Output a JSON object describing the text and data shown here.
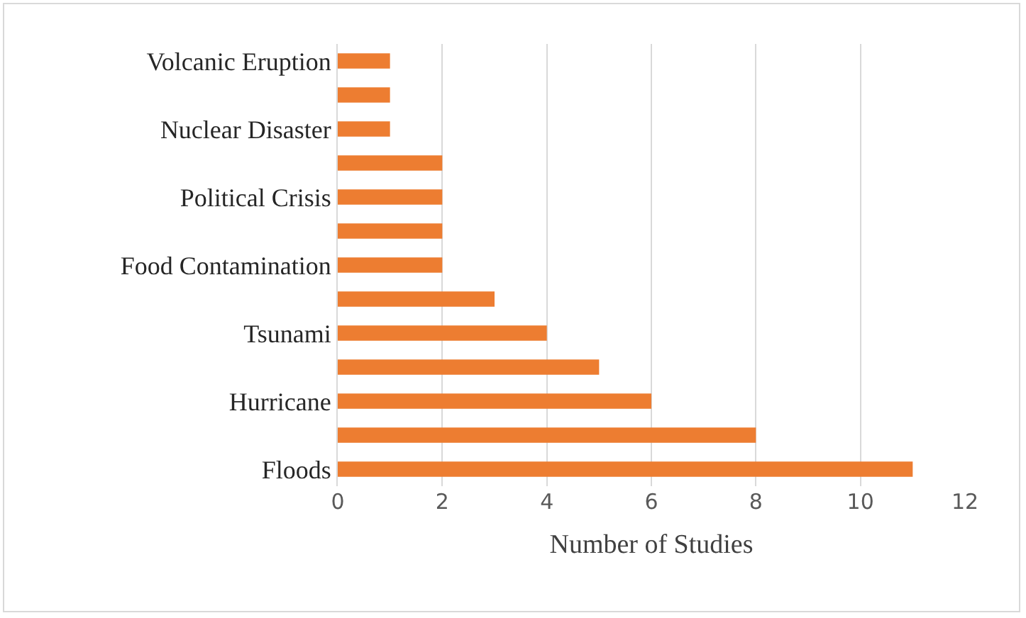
{
  "chart_data": {
    "type": "bar",
    "orientation": "horizontal",
    "xlabel": "Number of Studies",
    "categories": [
      "Volcanic Eruption",
      null,
      "Nuclear Disaster",
      null,
      "Political Crisis",
      null,
      "Food Contamination",
      null,
      "Tsunami",
      null,
      "Hurricane",
      null,
      "Floods"
    ],
    "values": [
      1,
      1,
      1,
      2,
      2,
      2,
      2,
      3,
      4,
      5,
      6,
      8,
      11
    ],
    "color": "#ed7d31",
    "xlim": [
      0,
      12
    ],
    "xticks": [
      0,
      2,
      4,
      6,
      8,
      10,
      12
    ],
    "grid": "x"
  }
}
